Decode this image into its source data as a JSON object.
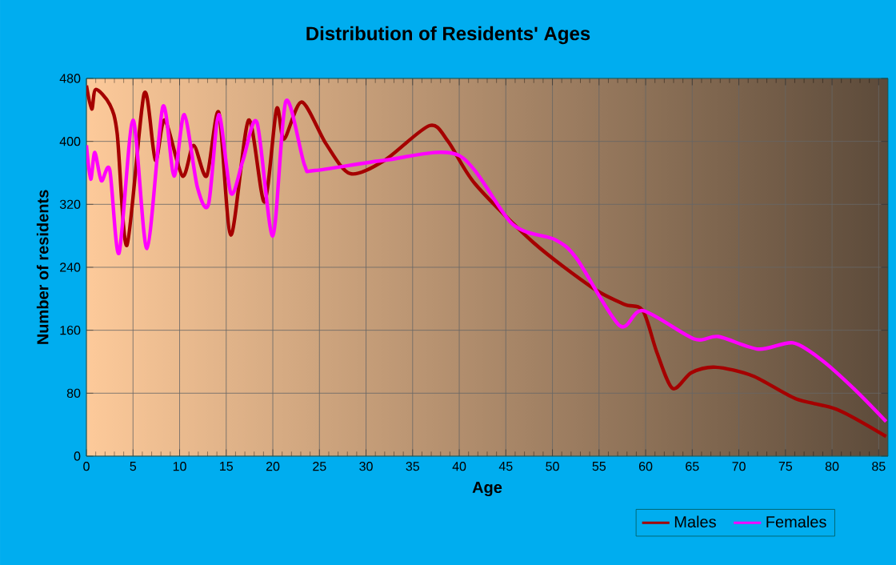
{
  "chart_data": {
    "type": "line",
    "title": "Distribution of Residents' Ages",
    "xlabel": "Age",
    "ylabel": "Number of residents",
    "xlim": [
      0,
      86
    ],
    "ylim": [
      0,
      480
    ],
    "xticks": [
      0,
      5,
      10,
      15,
      20,
      25,
      30,
      35,
      40,
      45,
      50,
      55,
      60,
      65,
      70,
      75,
      80,
      85
    ],
    "yticks": [
      0,
      80,
      160,
      240,
      320,
      400,
      480
    ],
    "grid": true,
    "legend": "bottom right",
    "series": [
      {
        "name": "Males",
        "color": "#a50000",
        "x": [
          0,
          0.57,
          1,
          2.5,
          3.3,
          4.35,
          6.2,
          7.4,
          8.4,
          10.3,
          11.5,
          12.9,
          14.2,
          15.5,
          17.4,
          19.1,
          20.4,
          21.2,
          23.1,
          25.7,
          28.3,
          32,
          36.8,
          38.8,
          41.7,
          48,
          54.3,
          57.7,
          59.7,
          61.2,
          62.9,
          64.9,
          67.5,
          71.5,
          76.1,
          80.6,
          85.8
        ],
        "values": [
          471,
          441,
          466,
          447,
          410,
          268,
          461,
          376,
          427,
          356,
          395,
          356,
          437,
          281,
          427,
          323,
          441,
          403,
          450,
          397,
          359,
          376,
          420,
          400,
          346,
          271,
          214,
          193,
          185,
          132,
          86,
          106,
          113,
          102,
          73,
          59,
          25
        ]
      },
      {
        "name": "Females",
        "color": "#ff00ff",
        "x": [
          0,
          0.46,
          0.9,
          1.6,
          2.5,
          3.5,
          5,
          6.5,
          8.2,
          9.4,
          10.5,
          11.9,
          13.1,
          14.2,
          15.5,
          16.8,
          18.3,
          20,
          21.4,
          23.4,
          24.5,
          32,
          40,
          45.7,
          50.3,
          52.6,
          57.2,
          59.7,
          65.2,
          67.8,
          72.1,
          75.8,
          78.9,
          82.4,
          85.8
        ],
        "values": [
          395,
          352,
          386,
          350,
          364,
          258,
          427,
          264,
          444,
          356,
          434,
          342,
          320,
          434,
          334,
          376,
          424,
          280,
          451,
          370,
          363,
          376,
          382,
          295,
          275,
          251,
          166,
          185,
          149,
          152,
          136,
          144,
          122,
          85,
          44
        ]
      }
    ]
  }
}
